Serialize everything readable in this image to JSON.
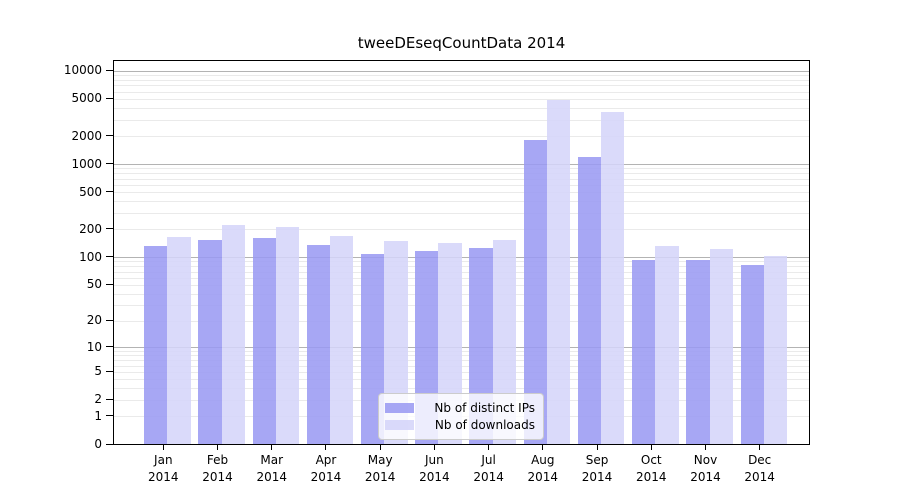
{
  "chart_data": {
    "type": "bar",
    "title": "tweeDEseqCountData 2014",
    "categories": [
      "Jan 2014",
      "Feb 2014",
      "Mar 2014",
      "Apr 2014",
      "May 2014",
      "Jun 2014",
      "Jul 2014",
      "Aug 2014",
      "Sep 2014",
      "Oct 2014",
      "Nov 2014",
      "Dec 2014"
    ],
    "series": [
      {
        "name": "Nb of distinct IPs",
        "color": "#9a9af2",
        "values": [
          134,
          155,
          165,
          138,
          111,
          119,
          128,
          1840,
          1220,
          95,
          95,
          83
        ]
      },
      {
        "name": "Nb of downloads",
        "color": "#d5d5f9",
        "values": [
          167,
          226,
          215,
          170,
          152,
          143,
          155,
          4900,
          3700,
          135,
          124,
          105
        ]
      }
    ],
    "xlabel": "",
    "ylabel": "",
    "yscale": "log1p",
    "ylim": [
      0,
      12900
    ],
    "y_ticks": [
      0,
      1,
      2,
      5,
      10,
      20,
      50,
      100,
      200,
      500,
      1000,
      2000,
      5000,
      10000
    ],
    "grid": {
      "enabled": true,
      "major_values": [
        10,
        100,
        1000,
        10000
      ],
      "minor_multiples": [
        1,
        2,
        3,
        4,
        5,
        6,
        7,
        8,
        9
      ]
    },
    "legend": {
      "position": "lower center",
      "entries": [
        "Nb of distinct IPs",
        "Nb of downloads"
      ]
    }
  },
  "colors": {
    "background": "#ffffff",
    "axis": "#000000",
    "grid_major": "#b3b3b3",
    "grid_minor": "#eaeaea",
    "text": "#000000",
    "legend_border": "#cccccc"
  }
}
